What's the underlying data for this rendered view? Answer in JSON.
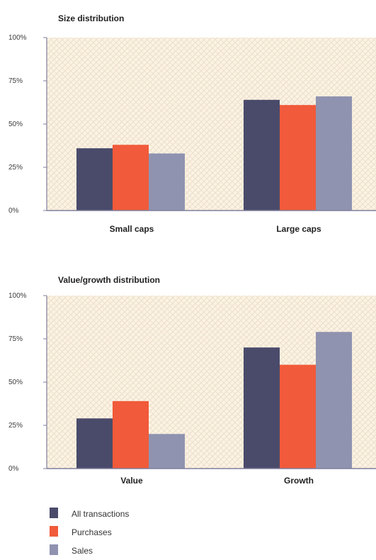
{
  "chart_data": [
    {
      "type": "bar",
      "title": "Size distribution",
      "xlabel": "",
      "ylabel": "",
      "categories": [
        "Small caps",
        "Large caps"
      ],
      "series": [
        {
          "name": "All transactions",
          "color": "#4a4b6b",
          "values": [
            36,
            64
          ]
        },
        {
          "name": "Purchases",
          "color": "#f15a3a",
          "values": [
            38,
            61
          ]
        },
        {
          "name": "Sales",
          "color": "#8f93b0",
          "values": [
            33,
            66
          ]
        }
      ],
      "ylim": [
        0,
        100
      ],
      "yticks": [
        "0%",
        "25%",
        "50%",
        "75%",
        "100%"
      ],
      "grid": false
    },
    {
      "type": "bar",
      "title": "Value/growth distribution",
      "xlabel": "",
      "ylabel": "",
      "categories": [
        "Value",
        "Growth"
      ],
      "series": [
        {
          "name": "All transactions",
          "color": "#4a4b6b",
          "values": [
            29,
            70
          ]
        },
        {
          "name": "Purchases",
          "color": "#f15a3a",
          "values": [
            39,
            60
          ]
        },
        {
          "name": "Sales",
          "color": "#8f93b0",
          "values": [
            20,
            79
          ]
        }
      ],
      "ylim": [
        0,
        100
      ],
      "yticks": [
        "0%",
        "25%",
        "50%",
        "75%",
        "100%"
      ],
      "grid": false
    }
  ],
  "legend": {
    "placement": "bottom-left",
    "items": [
      {
        "label": "All transactions",
        "color": "#4a4b6b"
      },
      {
        "label": "Purchases",
        "color": "#f15a3a"
      },
      {
        "label": "Sales",
        "color": "#8f93b0"
      }
    ]
  },
  "colors": {
    "plot_background": "#fbf3e4",
    "plot_pattern": "#efe0cb",
    "axis": "#7f7f9c"
  }
}
